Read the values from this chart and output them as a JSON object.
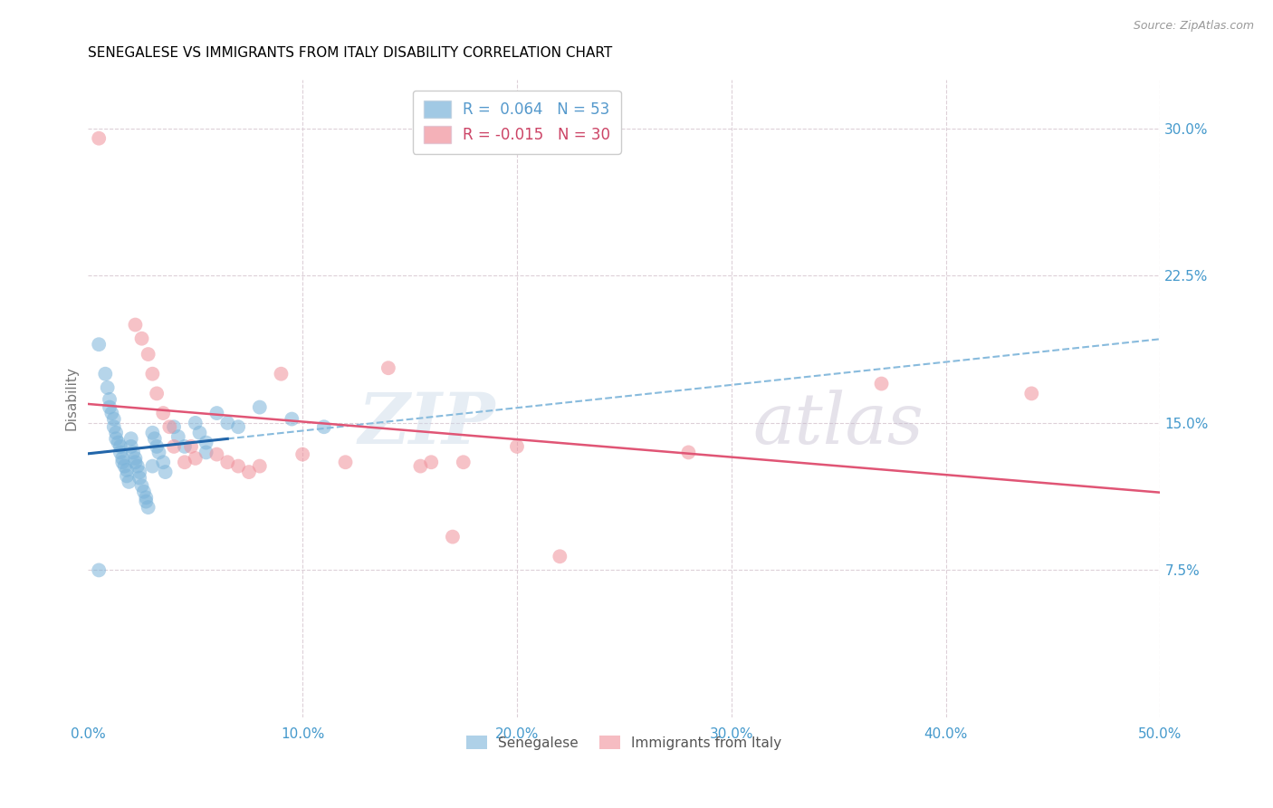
{
  "title": "SENEGALESE VS IMMIGRANTS FROM ITALY DISABILITY CORRELATION CHART",
  "source": "Source: ZipAtlas.com",
  "ylabel": "Disability",
  "xlabel_ticks": [
    "0.0%",
    "10.0%",
    "20.0%",
    "30.0%",
    "40.0%",
    "50.0%"
  ],
  "xlabel_vals": [
    0.0,
    0.1,
    0.2,
    0.3,
    0.4,
    0.5
  ],
  "ylabel_ticks": [
    "7.5%",
    "15.0%",
    "22.5%",
    "30.0%"
  ],
  "ylabel_vals": [
    0.075,
    0.15,
    0.225,
    0.3
  ],
  "xmin": 0.0,
  "xmax": 0.5,
  "ymin": 0.0,
  "ymax": 0.325,
  "series1_label": "Senegalese",
  "series1_color": "#7ab3d9",
  "series2_label": "Immigrants from Italy",
  "series2_color": "#f0909a",
  "senegalese_x": [
    0.005,
    0.008,
    0.009,
    0.01,
    0.01,
    0.011,
    0.012,
    0.012,
    0.013,
    0.013,
    0.014,
    0.015,
    0.015,
    0.016,
    0.016,
    0.017,
    0.018,
    0.018,
    0.019,
    0.02,
    0.02,
    0.021,
    0.022,
    0.022,
    0.023,
    0.024,
    0.024,
    0.025,
    0.026,
    0.027,
    0.027,
    0.028,
    0.03,
    0.031,
    0.032,
    0.033,
    0.035,
    0.036,
    0.04,
    0.042,
    0.045,
    0.05,
    0.052,
    0.055,
    0.06,
    0.065,
    0.07,
    0.08,
    0.095,
    0.11,
    0.03,
    0.055,
    0.005
  ],
  "senegalese_y": [
    0.19,
    0.175,
    0.168,
    0.162,
    0.158,
    0.155,
    0.152,
    0.148,
    0.145,
    0.142,
    0.14,
    0.138,
    0.135,
    0.132,
    0.13,
    0.128,
    0.126,
    0.123,
    0.12,
    0.142,
    0.138,
    0.135,
    0.132,
    0.13,
    0.128,
    0.125,
    0.122,
    0.118,
    0.115,
    0.112,
    0.11,
    0.107,
    0.145,
    0.142,
    0.138,
    0.135,
    0.13,
    0.125,
    0.148,
    0.143,
    0.138,
    0.15,
    0.145,
    0.14,
    0.155,
    0.15,
    0.148,
    0.158,
    0.152,
    0.148,
    0.128,
    0.135,
    0.075
  ],
  "italy_x": [
    0.005,
    0.022,
    0.025,
    0.028,
    0.03,
    0.032,
    0.035,
    0.038,
    0.04,
    0.045,
    0.048,
    0.05,
    0.06,
    0.065,
    0.07,
    0.075,
    0.08,
    0.09,
    0.1,
    0.12,
    0.14,
    0.155,
    0.16,
    0.17,
    0.175,
    0.2,
    0.22,
    0.28,
    0.37,
    0.44
  ],
  "italy_y": [
    0.295,
    0.2,
    0.193,
    0.185,
    0.175,
    0.165,
    0.155,
    0.148,
    0.138,
    0.13,
    0.138,
    0.132,
    0.134,
    0.13,
    0.128,
    0.125,
    0.128,
    0.175,
    0.134,
    0.13,
    0.178,
    0.128,
    0.13,
    0.092,
    0.13,
    0.138,
    0.082,
    0.135,
    0.17,
    0.165
  ],
  "watermark_zip": "ZIP",
  "watermark_atlas": "atlas",
  "background_color": "#ffffff",
  "grid_color": "#ddd0d8",
  "tick_color": "#4499cc",
  "title_color": "#000000",
  "title_fontsize": 11,
  "axis_label_color": "#777777",
  "legend_r1": "R =  0.064   N = 53",
  "legend_r2": "R = -0.015   N = 30",
  "legend_color1": "#5599cc",
  "legend_color2": "#cc4466"
}
